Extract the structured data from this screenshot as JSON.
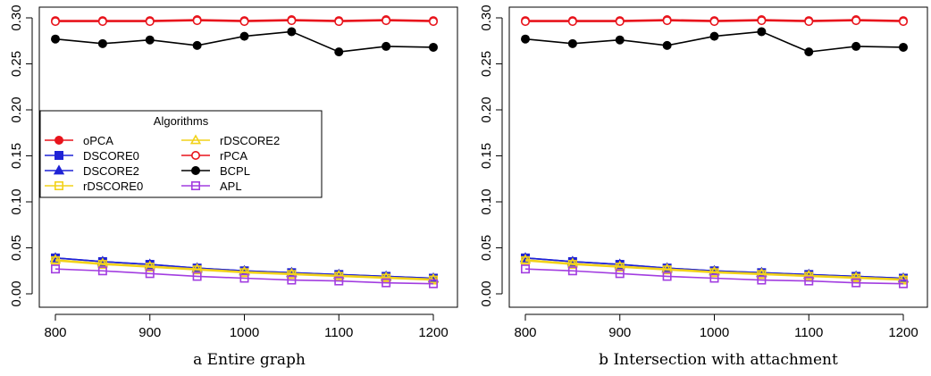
{
  "chart_data": [
    {
      "type": "line",
      "caption": "a Entire graph",
      "x": [
        800,
        850,
        900,
        950,
        1000,
        1050,
        1100,
        1150,
        1200
      ],
      "xticks": [
        800,
        900,
        1000,
        1100,
        1200
      ],
      "yticks": [
        "0.00",
        "0.05",
        "0.10",
        "0.15",
        "0.20",
        "0.25",
        "0.30"
      ],
      "ylim": [
        0,
        0.3
      ],
      "xlim": [
        800,
        1200
      ],
      "legend": {
        "title": "Algorithms",
        "placement": "left-middle"
      },
      "series": [
        {
          "name": "oPCA",
          "color": "#e8141c",
          "marker": "filled-circle",
          "values": [
            0.297,
            0.297,
            0.297,
            0.298,
            0.297,
            0.298,
            0.297,
            0.298,
            0.297
          ]
        },
        {
          "name": "DSCORE0",
          "color": "#1f23d6",
          "marker": "filled-square",
          "values": [
            0.039,
            0.035,
            0.032,
            0.028,
            0.025,
            0.023,
            0.021,
            0.019,
            0.017
          ]
        },
        {
          "name": "DSCORE2",
          "color": "#1f23d6",
          "marker": "filled-triangle",
          "values": [
            0.039,
            0.035,
            0.032,
            0.028,
            0.025,
            0.023,
            0.021,
            0.019,
            0.017
          ]
        },
        {
          "name": "rDSCORE0",
          "color": "#f2d21a",
          "marker": "open-square",
          "values": [
            0.036,
            0.032,
            0.029,
            0.026,
            0.023,
            0.021,
            0.019,
            0.017,
            0.015
          ]
        },
        {
          "name": "rDSCORE2",
          "color": "#f2d21a",
          "marker": "open-triangle",
          "values": [
            0.037,
            0.033,
            0.03,
            0.027,
            0.024,
            0.022,
            0.02,
            0.018,
            0.016
          ]
        },
        {
          "name": "rPCA",
          "color": "#e8141c",
          "marker": "open-circle",
          "values": [
            0.296,
            0.296,
            0.296,
            0.297,
            0.296,
            0.297,
            0.296,
            0.297,
            0.296
          ]
        },
        {
          "name": "BCPL",
          "color": "#000000",
          "marker": "filled-circle",
          "values": [
            0.277,
            0.272,
            0.276,
            0.27,
            0.28,
            0.285,
            0.263,
            0.269,
            0.268
          ]
        },
        {
          "name": "APL",
          "color": "#a23de0",
          "marker": "open-square",
          "values": [
            0.027,
            0.025,
            0.022,
            0.019,
            0.017,
            0.015,
            0.014,
            0.012,
            0.011
          ]
        }
      ]
    },
    {
      "type": "line",
      "caption": "b Intersection with attachment",
      "x": [
        800,
        850,
        900,
        950,
        1000,
        1050,
        1100,
        1150,
        1200
      ],
      "xticks": [
        800,
        900,
        1000,
        1100,
        1200
      ],
      "yticks": [
        "0.00",
        "0.05",
        "0.10",
        "0.15",
        "0.20",
        "0.25",
        "0.30"
      ],
      "ylim": [
        0,
        0.3
      ],
      "xlim": [
        800,
        1200
      ],
      "series": [
        {
          "name": "oPCA",
          "color": "#e8141c",
          "marker": "filled-circle",
          "values": [
            0.297,
            0.297,
            0.297,
            0.298,
            0.297,
            0.298,
            0.297,
            0.298,
            0.297
          ]
        },
        {
          "name": "DSCORE0",
          "color": "#1f23d6",
          "marker": "filled-square",
          "values": [
            0.039,
            0.035,
            0.032,
            0.028,
            0.025,
            0.023,
            0.021,
            0.019,
            0.017
          ]
        },
        {
          "name": "DSCORE2",
          "color": "#1f23d6",
          "marker": "filled-triangle",
          "values": [
            0.039,
            0.035,
            0.032,
            0.028,
            0.025,
            0.023,
            0.021,
            0.019,
            0.017
          ]
        },
        {
          "name": "rDSCORE0",
          "color": "#f2d21a",
          "marker": "open-square",
          "values": [
            0.036,
            0.032,
            0.029,
            0.026,
            0.023,
            0.021,
            0.019,
            0.017,
            0.015
          ]
        },
        {
          "name": "rDSCORE2",
          "color": "#f2d21a",
          "marker": "open-triangle",
          "values": [
            0.037,
            0.033,
            0.03,
            0.027,
            0.024,
            0.022,
            0.02,
            0.018,
            0.016
          ]
        },
        {
          "name": "rPCA",
          "color": "#e8141c",
          "marker": "open-circle",
          "values": [
            0.296,
            0.296,
            0.296,
            0.297,
            0.296,
            0.297,
            0.296,
            0.297,
            0.296
          ]
        },
        {
          "name": "BCPL",
          "color": "#000000",
          "marker": "filled-circle",
          "values": [
            0.277,
            0.272,
            0.276,
            0.27,
            0.28,
            0.285,
            0.263,
            0.269,
            0.268
          ]
        },
        {
          "name": "APL",
          "color": "#a23de0",
          "marker": "open-square",
          "values": [
            0.027,
            0.025,
            0.022,
            0.019,
            0.017,
            0.015,
            0.014,
            0.012,
            0.011
          ]
        }
      ]
    }
  ]
}
